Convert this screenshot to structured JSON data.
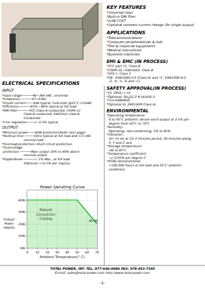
{
  "chart_data": {
    "type": "area",
    "title": "Power Derating Curve",
    "x_label": "Ambient Temperature(° C)",
    "y_label": "Output\nPower\n(Watts)",
    "x": [
      0,
      50,
      50,
      70
    ],
    "values": [
      40,
      40,
      40,
      20
    ],
    "color": "#00bb00",
    "xlim": [
      0,
      70
    ],
    "ylim": [
      0,
      48
    ],
    "xticks": [
      0,
      10,
      20,
      30,
      40,
      50,
      60,
      70
    ],
    "yticks": [
      {
        "value": 0,
        "label": "0W"
      },
      {
        "value": 10,
        "label": "10W"
      },
      {
        "value": 20,
        "label": "20W"
      },
      {
        "value": 30,
        "label": "30W"
      },
      {
        "value": 40,
        "label": "40W"
      }
    ],
    "grid": true,
    "annotations": [
      "Natural\nConvection\nCooling",
      "20 W"
    ]
  },
  "annotations": [
    {
      "title": "KEY FEATURES",
      "lines": [
        "*Universal input",
        "*Built-in EMI filter",
        "*LOW COST",
        "*Optional constant current change (for single output)"
      ]
    },
    {
      "title": "APPLICATIONS",
      "lines": [
        "*Telecommunications",
        "*Computer peripherals/Lan & Hub",
        "*Test & industrial equipments",
        "*Medical instruments",
        "*Business machines"
      ]
    },
    {
      "title": "EMI & EMC (IN PROCESS)",
      "lines": [
        "*FCC part 15, Class B",
        "*CISPR 22 / EN55022, Class B",
        "*VCE 1, Class 2",
        "*CB : EN61000-3-2 (Class A) and -3 ; EN61000-4-2,",
        "  -3, -4, -5, -6 and -11"
      ]
    },
    {
      "title": "SAFETY APPROVAL(IN PROCESS)",
      "lines": [
        "*UL 1950 / c UL",
        "*Optional: SA J22.2 #14/VDE 3",
        "*TUV EN60950",
        "*Optional UL 2601(EMI Class A)"
      ]
    },
    {
      "title": "ENVIRONMENTAL",
      "lines": [
        "*Operating temperature:",
        "  0 to 50°C ambient; derate each output at 2.5% per",
        "  degree from 50°C to 70°C",
        "*Humidity:",
        "  Operating: non-condensing, 5% to 95%",
        "*Vibration :",
        "  10~55 Hz at 1G 3 minutes period, 30 minutes along",
        "  X, Y and Z axis",
        "*Storage temperature:",
        "  -40 to 85°C",
        "*Temperature coefficient:",
        "  +/- 0.05% per degree C",
        "*MTBF demonstrated:",
        "  >100,000 hours at full load and 25°C ambient",
        "  conditions"
      ]
    },
    {
      "title": "ELECTRICAL SPECIFICATIONS",
      "parts": [
        {
          "title": "INPUT",
          "lines": [
            "*Input range----------90~264 VAC, universal",
            "*Frequency-----------47~63Hz",
            "*Inrush current-------30A typical, Cold start @25°C,115VAC",
            "*Efficiency-----------65% ~80% typical at full load",
            "*EMI filter-----------FCC Class B conducted, CISPR 22",
            "                      Class B conducted, EN55022 class B",
            "                      Conducted",
            "*Line regulation------+/- 0.5% typical"
          ]
        },
        {
          "title": "OUTPUT",
          "lines": [
            "*Minimum power------40W protection(Refer next page)",
            "*Hold-up time --------10ms typical at full load and 115 VAC",
            "                      nominal load",
            "*Overload protection--Short circuit protection",
            "*Overvoltage",
            " protection ----------Main output 20% to 40% above",
            "                      nominal output",
            "*Ripple/Noise --------+/- 1% Max., at full load",
            "                      (Optional +/-0.5% per inquiry)"
          ]
        }
      ]
    },
    {
      "lines": [
        "TOTAL POWER, INT.    TEL: 877-646-0900   FAX: 978-453-7395",
        "E-mail: sales@total-power.com    http://www.total-power.com",
        "-1-"
      ]
    }
  ]
}
